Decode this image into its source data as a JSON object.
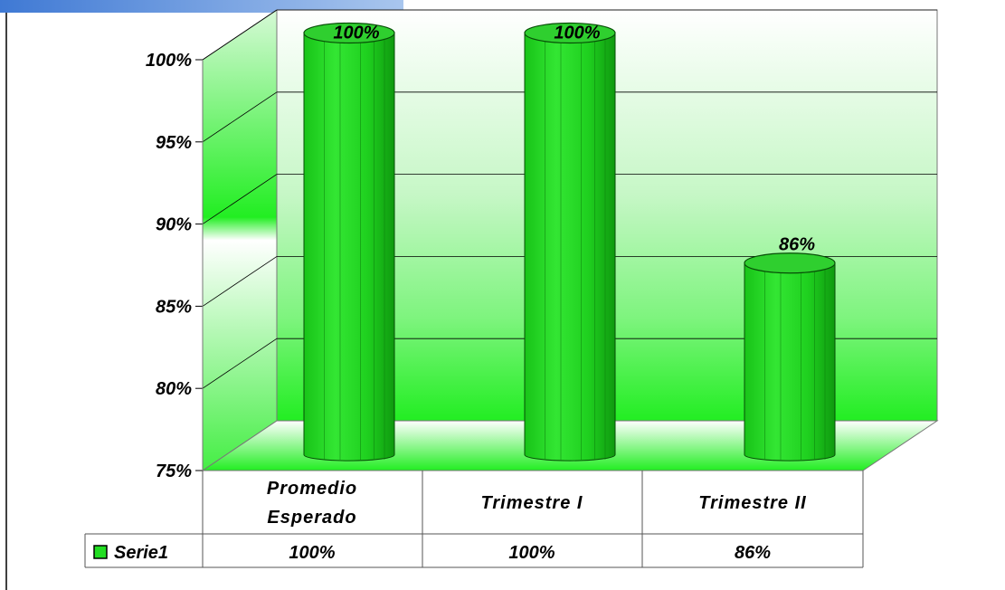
{
  "chart_data": {
    "type": "bar",
    "style": "3d-cylinder",
    "categories": [
      "Promedio Esperado",
      "Trimestre I",
      "Trimestre II"
    ],
    "series": [
      {
        "name": "Serie1",
        "values": [
          100,
          100,
          86
        ],
        "color": "#22dd22"
      }
    ],
    "value_labels": [
      "100%",
      "100%",
      "86%"
    ],
    "yticks": [
      "75%",
      "80%",
      "85%",
      "90%",
      "95%",
      "100%"
    ],
    "ylim": [
      75,
      100
    ],
    "grid": true,
    "legend": "data-table",
    "data_table": {
      "legend_label": "Serie1",
      "values": [
        "100%",
        "100%",
        "86%"
      ]
    }
  },
  "colors": {
    "bar": "#22dd22",
    "bar_dark": "#0fa00f",
    "bar_top": "#33cc33",
    "wall_green": "#33ee33",
    "header_bar": "#4a86d8"
  }
}
